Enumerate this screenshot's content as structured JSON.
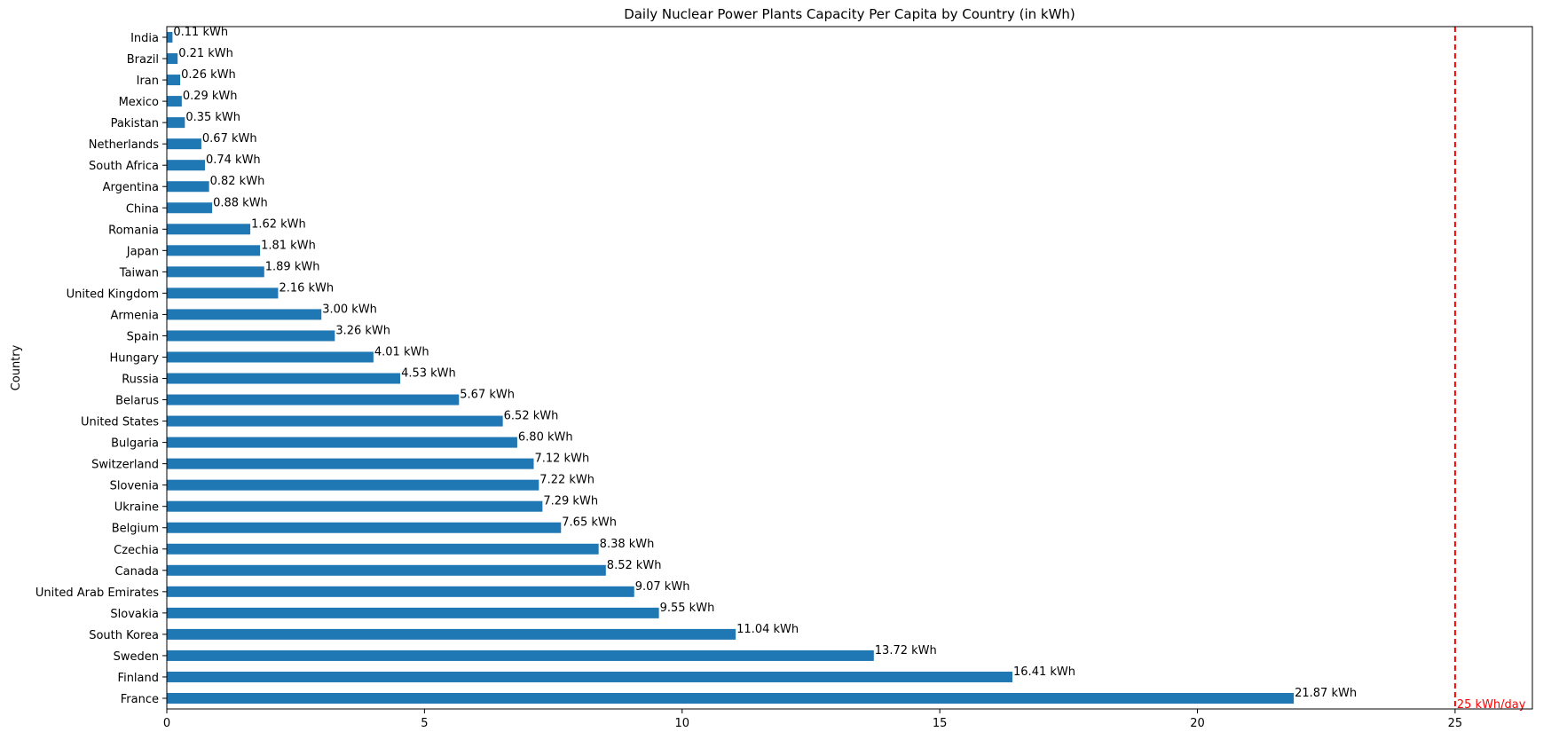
{
  "chart_data": {
    "type": "bar",
    "orientation": "horizontal",
    "title": "Daily Nuclear Power Plants Capacity Per Capita by Country (in kWh)",
    "xlabel": "",
    "ylabel": "Country",
    "xlim": [
      0,
      26.5
    ],
    "xticks": [
      0,
      5,
      10,
      15,
      20,
      25
    ],
    "value_suffix": " kWh",
    "bar_color": "#1f77b4",
    "categories": [
      "India",
      "Brazil",
      "Iran",
      "Mexico",
      "Pakistan",
      "Netherlands",
      "South Africa",
      "Argentina",
      "China",
      "Romania",
      "Japan",
      "Taiwan",
      "United Kingdom",
      "Armenia",
      "Spain",
      "Hungary",
      "Russia",
      "Belarus",
      "United States",
      "Bulgaria",
      "Switzerland",
      "Slovenia",
      "Ukraine",
      "Belgium",
      "Czechia",
      "Canada",
      "United Arab Emirates",
      "Slovakia",
      "South Korea",
      "Sweden",
      "Finland",
      "France"
    ],
    "values": [
      0.11,
      0.21,
      0.26,
      0.29,
      0.35,
      0.67,
      0.74,
      0.82,
      0.88,
      1.62,
      1.81,
      1.89,
      2.16,
      3.0,
      3.26,
      4.01,
      4.53,
      5.67,
      6.52,
      6.8,
      7.12,
      7.22,
      7.29,
      7.65,
      8.38,
      8.52,
      9.07,
      9.55,
      11.04,
      13.72,
      16.41,
      21.87
    ],
    "reference_line": {
      "value": 25,
      "label": "25 kWh/day",
      "color": "#ff0000"
    },
    "grid": false,
    "legend": "none"
  }
}
